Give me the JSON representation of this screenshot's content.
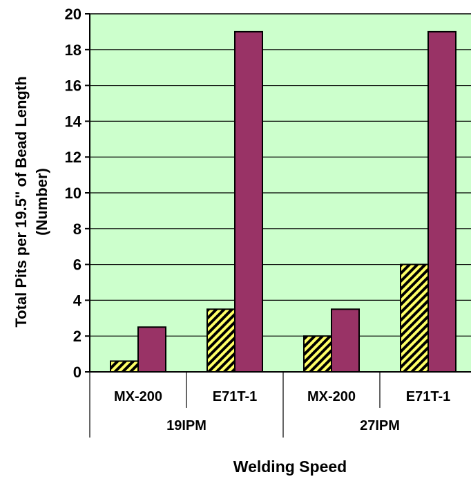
{
  "chart_data": {
    "type": "bar",
    "title": "",
    "ylabel_line1": "Total Pits per 19.5\" of Bead Length",
    "ylabel_line2": "(Number)",
    "xlabel": "Welding Speed",
    "ylim": [
      0,
      20
    ],
    "yticks": [
      0,
      2,
      4,
      6,
      8,
      10,
      12,
      14,
      16,
      18,
      20
    ],
    "grid": true,
    "legend": "none",
    "groups": [
      {
        "label": "19IPM",
        "categories": [
          "MX-200",
          "E71T-1"
        ]
      },
      {
        "label": "27IPM",
        "categories": [
          "MX-200",
          "E71T-1"
        ]
      }
    ],
    "categories": [
      "MX-200",
      "E71T-1",
      "MX-200",
      "E71T-1"
    ],
    "series": [
      {
        "values": [
          0.6,
          3.5,
          2,
          6
        ],
        "color": "#ffff66",
        "pattern": "diagonal-hatch"
      },
      {
        "values": [
          2.5,
          19,
          3.5,
          19
        ],
        "color": "#993366"
      }
    ],
    "plot_background": "#ccffcc"
  }
}
